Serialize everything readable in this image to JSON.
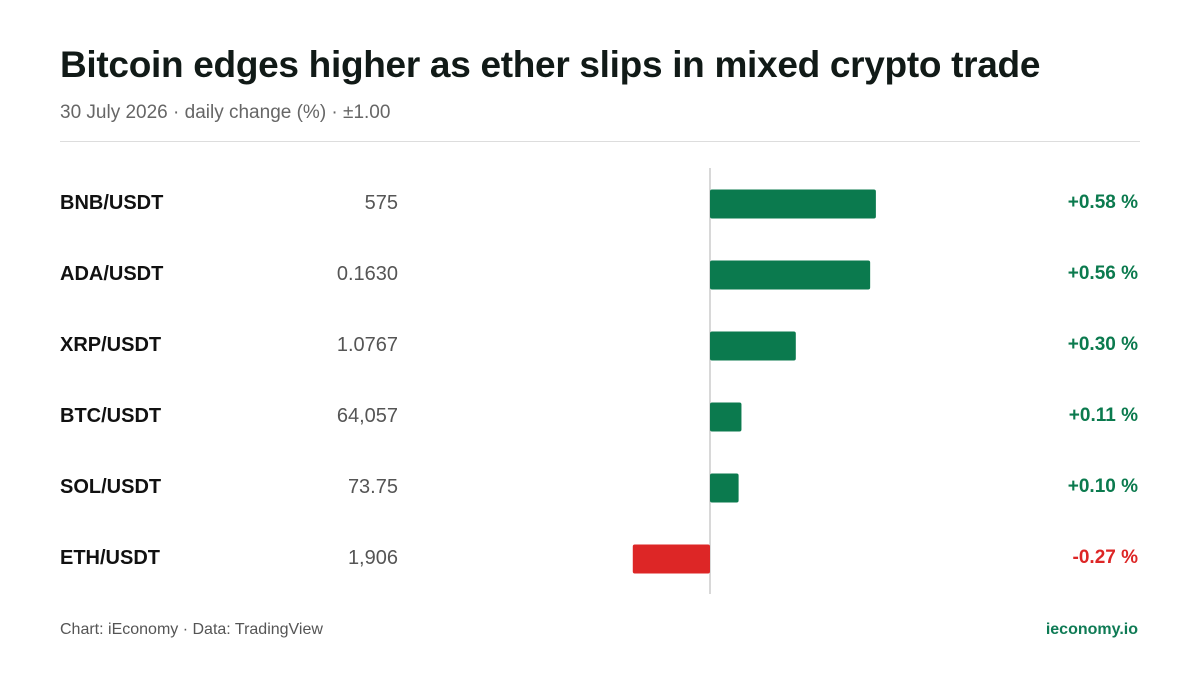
{
  "header": {
    "title": "Bitcoin edges higher as ether slips in mixed crypto trade",
    "subtitle": "30 July 2026 · daily change (%) · ±1.00"
  },
  "footer": {
    "credit": "Chart: iEconomy · Data: TradingView",
    "site": "ieconomy.io"
  },
  "colors": {
    "positive": "#0b7a4e",
    "negative": "#dd2626",
    "axis": "#cccccc"
  },
  "chart_data": {
    "type": "bar",
    "orientation": "horizontal",
    "categories": [
      "BNB/USDT",
      "ADA/USDT",
      "XRP/USDT",
      "BTC/USDT",
      "SOL/USDT",
      "ETH/USDT"
    ],
    "prices": [
      "575",
      "0.1630",
      "1.0767",
      "64,057",
      "73.75",
      "1,906"
    ],
    "values": [
      0.58,
      0.56,
      0.3,
      0.11,
      0.1,
      -0.27
    ],
    "value_labels": [
      "+0.58 %",
      "+0.56 %",
      "+0.30 %",
      "+0.11 %",
      "+0.10 %",
      "-0.27 %"
    ],
    "xlim": [
      -1.0,
      1.0
    ],
    "grid": false,
    "legend": "none"
  }
}
